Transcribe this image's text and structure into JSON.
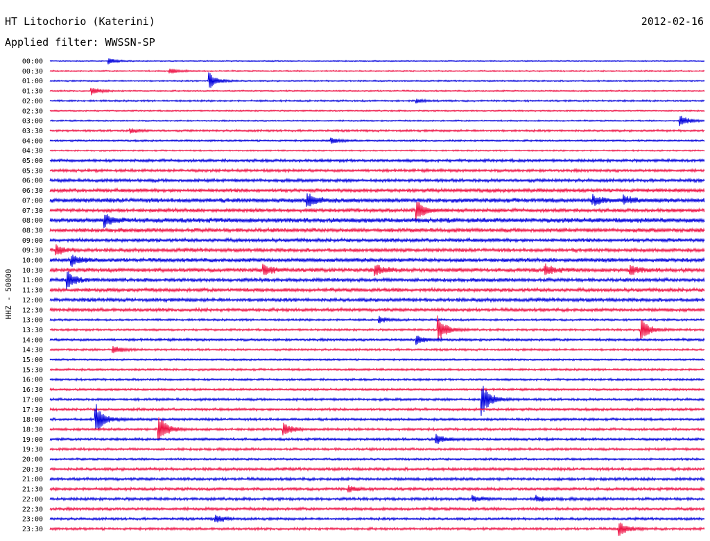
{
  "header": {
    "station": "HT Litochorio (Katerini)",
    "date": "2012-02-16",
    "filter": "Applied filter: WWSSN-SP"
  },
  "axis": {
    "y_label": "HHZ - 50000"
  },
  "colors": {
    "trace_even": "#0000dd",
    "trace_odd": "#ee1144",
    "text": "#000000",
    "background": "#ffffff"
  },
  "chart_data": {
    "type": "line",
    "title": "HT Litochorio (Katerini)",
    "ylabel": "HHZ - 50000",
    "rows": [
      "00:00",
      "00:30",
      "01:00",
      "01:30",
      "02:00",
      "02:30",
      "03:00",
      "03:30",
      "04:00",
      "04:30",
      "05:00",
      "05:30",
      "06:00",
      "06:30",
      "07:00",
      "07:30",
      "08:00",
      "08:30",
      "09:00",
      "09:30",
      "10:00",
      "10:30",
      "11:00",
      "11:30",
      "12:00",
      "12:30",
      "13:00",
      "13:30",
      "14:00",
      "14:30",
      "15:00",
      "15:30",
      "16:00",
      "16:30",
      "17:00",
      "17:30",
      "18:00",
      "18:30",
      "19:00",
      "19:30",
      "20:00",
      "20:30",
      "21:00",
      "21:30",
      "22:00",
      "22:30",
      "23:00",
      "23:30"
    ],
    "row_minutes": 30,
    "noise": [
      0.6,
      0.8,
      0.8,
      0.8,
      1.0,
      0.8,
      0.8,
      1.2,
      1.0,
      0.8,
      1.6,
      1.6,
      1.8,
      2.0,
      2.4,
      2.0,
      2.6,
      2.2,
      2.0,
      2.0,
      2.2,
      2.2,
      2.0,
      2.0,
      2.0,
      1.8,
      1.2,
      1.2,
      1.4,
      1.2,
      1.0,
      1.2,
      1.2,
      1.2,
      1.4,
      1.4,
      1.4,
      1.4,
      1.4,
      1.4,
      1.2,
      1.6,
      1.6,
      1.6,
      1.6,
      1.6,
      1.4,
      1.4
    ],
    "events": [
      {
        "row": 0,
        "minute": 2.7,
        "amplitude": 4
      },
      {
        "row": 1,
        "minute": 5.5,
        "amplitude": 4
      },
      {
        "row": 2,
        "minute": 7.3,
        "amplitude": 12
      },
      {
        "row": 3,
        "minute": 1.9,
        "amplitude": 6
      },
      {
        "row": 4,
        "minute": 16.8,
        "amplitude": 3
      },
      {
        "row": 6,
        "minute": 28.9,
        "amplitude": 8
      },
      {
        "row": 7,
        "minute": 3.7,
        "amplitude": 3
      },
      {
        "row": 8,
        "minute": 12.9,
        "amplitude": 4
      },
      {
        "row": 14,
        "minute": 11.8,
        "amplitude": 10
      },
      {
        "row": 14,
        "minute": 24.9,
        "amplitude": 7
      },
      {
        "row": 14,
        "minute": 26.3,
        "amplitude": 6
      },
      {
        "row": 15,
        "minute": 16.8,
        "amplitude": 14
      },
      {
        "row": 16,
        "minute": 2.5,
        "amplitude": 8
      },
      {
        "row": 19,
        "minute": 0.3,
        "amplitude": 6
      },
      {
        "row": 20,
        "minute": 1.0,
        "amplitude": 8
      },
      {
        "row": 21,
        "minute": 9.8,
        "amplitude": 8
      },
      {
        "row": 21,
        "minute": 14.9,
        "amplitude": 8
      },
      {
        "row": 21,
        "minute": 22.7,
        "amplitude": 8
      },
      {
        "row": 21,
        "minute": 26.6,
        "amplitude": 7
      },
      {
        "row": 22,
        "minute": 0.8,
        "amplitude": 12
      },
      {
        "row": 26,
        "minute": 15.1,
        "amplitude": 4
      },
      {
        "row": 27,
        "minute": 17.8,
        "amplitude": 18
      },
      {
        "row": 27,
        "minute": 27.1,
        "amplitude": 16
      },
      {
        "row": 28,
        "minute": 16.8,
        "amplitude": 7
      },
      {
        "row": 29,
        "minute": 2.9,
        "amplitude": 6
      },
      {
        "row": 34,
        "minute": 19.8,
        "amplitude": 22
      },
      {
        "row": 36,
        "minute": 2.1,
        "amplitude": 22
      },
      {
        "row": 37,
        "minute": 5.0,
        "amplitude": 20
      },
      {
        "row": 37,
        "minute": 10.7,
        "amplitude": 9
      },
      {
        "row": 38,
        "minute": 17.7,
        "amplitude": 7
      },
      {
        "row": 43,
        "minute": 13.7,
        "amplitude": 4
      },
      {
        "row": 44,
        "minute": 19.4,
        "amplitude": 4
      },
      {
        "row": 44,
        "minute": 22.3,
        "amplitude": 4
      },
      {
        "row": 46,
        "minute": 7.6,
        "amplitude": 6
      },
      {
        "row": 47,
        "minute": 26.1,
        "amplitude": 10
      }
    ]
  }
}
